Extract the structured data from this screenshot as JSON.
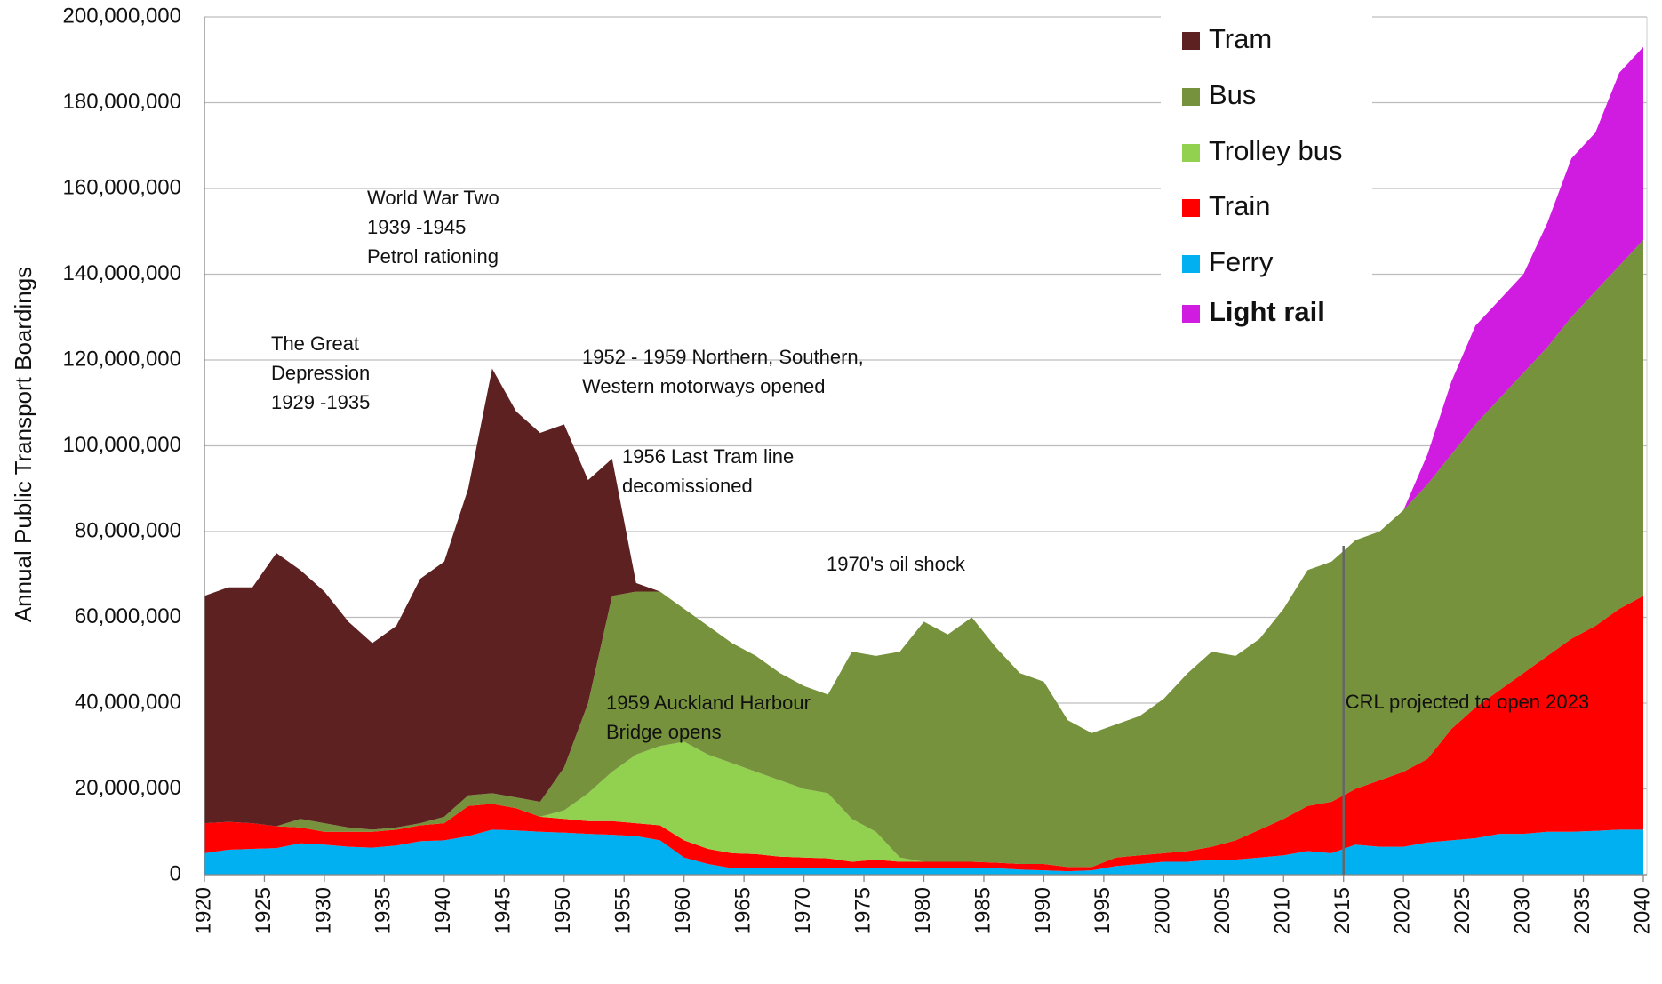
{
  "chart_data": {
    "type": "stacked_area",
    "y_label": "Annual Public Transport Boardings",
    "x": [
      1920,
      1922,
      1924,
      1926,
      1928,
      1930,
      1932,
      1934,
      1936,
      1938,
      1940,
      1942,
      1944,
      1946,
      1948,
      1950,
      1952,
      1954,
      1956,
      1958,
      1960,
      1962,
      1964,
      1966,
      1968,
      1970,
      1972,
      1974,
      1976,
      1978,
      1980,
      1982,
      1984,
      1986,
      1988,
      1990,
      1992,
      1994,
      1996,
      1998,
      2000,
      2002,
      2004,
      2006,
      2008,
      2010,
      2012,
      2014,
      2016,
      2018,
      2020,
      2022,
      2024,
      2026,
      2028,
      2030,
      2032,
      2034,
      2036,
      2038,
      2040
    ],
    "series": [
      {
        "name": "Ferry",
        "color": "#00b0f0",
        "values": [
          5000000,
          5800000,
          6000000,
          6200000,
          7300000,
          7000000,
          6500000,
          6300000,
          6800000,
          7800000,
          8000000,
          9000000,
          10500000,
          10300000,
          10000000,
          9800000,
          9500000,
          9300000,
          9000000,
          8000000,
          4000000,
          2500000,
          1500000,
          1500000,
          1500000,
          1500000,
          1500000,
          1500000,
          1500000,
          1500000,
          1500000,
          1500000,
          1500000,
          1500000,
          1200000,
          1000000,
          800000,
          1000000,
          2000000,
          2500000,
          3000000,
          3000000,
          3500000,
          3500000,
          4000000,
          4500000,
          5500000,
          5000000,
          7000000,
          6500000,
          6500000,
          7500000,
          8000000,
          8500000,
          9500000,
          9500000,
          10000000,
          10000000,
          10200000,
          10500000,
          10500000
        ]
      },
      {
        "name": "Train",
        "color": "#ff0000",
        "values": [
          7000000,
          6500000,
          6000000,
          5100000,
          3700000,
          3000000,
          3500000,
          3700000,
          3700000,
          3700000,
          4000000,
          7000000,
          6000000,
          5200000,
          3500000,
          3200000,
          3000000,
          3200000,
          3000000,
          3500000,
          4000000,
          3500000,
          3500000,
          3300000,
          2700000,
          2500000,
          2300000,
          1500000,
          2000000,
          1500000,
          1500000,
          1500000,
          1500000,
          1300000,
          1300000,
          1500000,
          1000000,
          800000,
          2000000,
          2000000,
          2000000,
          2500000,
          3000000,
          4500000,
          6500000,
          8500000,
          10500000,
          12000000,
          13000000,
          15500000,
          17500000,
          19500000,
          26000000,
          30500000,
          33500000,
          37500000,
          41000000,
          45000000,
          47800000,
          51500000,
          54500000
        ]
      },
      {
        "name": "Trolley bus",
        "color": "#92d050",
        "values": [
          0,
          0,
          0,
          0,
          0,
          0,
          0,
          0,
          0,
          0,
          0,
          0,
          0,
          0,
          0,
          2000000,
          6500000,
          11500000,
          16000000,
          18500000,
          23000000,
          22000000,
          21000000,
          19200000,
          17800000,
          16000000,
          15200000,
          10000000,
          6500000,
          1000000,
          0,
          0,
          0,
          0,
          0,
          0,
          0,
          0,
          0,
          0,
          0,
          0,
          0,
          0,
          0,
          0,
          0,
          0,
          0,
          0,
          0,
          0,
          0,
          0,
          0,
          0,
          0,
          0,
          0,
          0,
          0
        ]
      },
      {
        "name": "Bus",
        "color": "#76923c",
        "values": [
          0,
          0,
          0,
          0,
          2000000,
          2000000,
          1000000,
          500000,
          500000,
          500000,
          1500000,
          2500000,
          2500000,
          2500000,
          3500000,
          10000000,
          21000000,
          41000000,
          38000000,
          36000000,
          31000000,
          30000000,
          28000000,
          27000000,
          25000000,
          24000000,
          23000000,
          39000000,
          41000000,
          48000000,
          56000000,
          53000000,
          57000000,
          50200000,
          44500000,
          42500000,
          34200000,
          31200000,
          31000000,
          32500000,
          36000000,
          41500000,
          45500000,
          43000000,
          44500000,
          49000000,
          55000000,
          56000000,
          58000000,
          58000000,
          61000000,
          64000000,
          64000000,
          66000000,
          68000000,
          70000000,
          72000000,
          75000000,
          78000000,
          80000000,
          83000000
        ]
      },
      {
        "name": "Tram",
        "color": "#5c2120",
        "values": [
          53000000,
          54700000,
          55000000,
          63700000,
          58000000,
          54000000,
          48000000,
          43500000,
          47000000,
          57000000,
          59500000,
          71500000,
          99000000,
          90000000,
          86000000,
          80000000,
          52000000,
          32000000,
          2000000,
          0,
          0,
          0,
          0,
          0,
          0,
          0,
          0,
          0,
          0,
          0,
          0,
          0,
          0,
          0,
          0,
          0,
          0,
          0,
          0,
          0,
          0,
          0,
          0,
          0,
          0,
          0,
          0,
          0,
          0,
          0,
          0,
          0,
          0,
          0,
          0,
          0,
          0,
          0,
          0,
          0,
          0
        ]
      },
      {
        "name": "Light rail",
        "color": "#d01ce0",
        "values": [
          0,
          0,
          0,
          0,
          0,
          0,
          0,
          0,
          0,
          0,
          0,
          0,
          0,
          0,
          0,
          0,
          0,
          0,
          0,
          0,
          0,
          0,
          0,
          0,
          0,
          0,
          0,
          0,
          0,
          0,
          0,
          0,
          0,
          0,
          0,
          0,
          0,
          0,
          0,
          0,
          0,
          0,
          0,
          0,
          0,
          0,
          0,
          0,
          0,
          0,
          0,
          7000000,
          17000000,
          23000000,
          23000000,
          23000000,
          29000000,
          37000000,
          37000000,
          45000000,
          45000000
        ]
      }
    ],
    "xlim": [
      1920,
      2040
    ],
    "xticks": [
      1920,
      1925,
      1930,
      1935,
      1940,
      1945,
      1950,
      1955,
      1960,
      1965,
      1970,
      1975,
      1980,
      1985,
      1990,
      1995,
      2000,
      2005,
      2010,
      2015,
      2020,
      2025,
      2030,
      2035,
      2040
    ],
    "ylim": [
      0,
      200000000
    ],
    "yticks": [
      0,
      {
        "value": 20000000,
        "label": "20,000,000"
      },
      {
        "value": 40000000,
        "label": "40,000,000"
      },
      {
        "value": 60000000,
        "label": "60,000,000"
      },
      {
        "value": 80000000,
        "label": "80,000,000"
      },
      {
        "value": 100000000,
        "label": "100,000,000"
      },
      {
        "value": 120000000,
        "label": "120,000,000"
      },
      {
        "value": 140000000,
        "label": "140,000,000"
      },
      {
        "value": 160000000,
        "label": "160,000,000"
      },
      {
        "value": 180000000,
        "label": "180,000,000"
      },
      {
        "value": 200000000,
        "label": "200,000,000"
      }
    ],
    "grid": true,
    "legend": "top-right",
    "annotations": [
      {
        "lines": [
          "World War Two",
          "1939 -1945",
          "Petrol rationing"
        ]
      },
      {
        "lines": [
          "The Great",
          "Depression",
          "1929 -1935"
        ]
      },
      {
        "lines": [
          "1952 - 1959 Northern, Southern,",
          "Western motorways opened"
        ]
      },
      {
        "lines": [
          "1956 Last Tram line",
          "decomissioned"
        ]
      },
      {
        "lines": [
          "1970's oil shock"
        ]
      },
      {
        "lines": [
          "1959 Auckland Harbour",
          "Bridge opens"
        ]
      }
    ],
    "marker": {
      "x": 2015,
      "text": "CRL projected to open 2023"
    }
  }
}
